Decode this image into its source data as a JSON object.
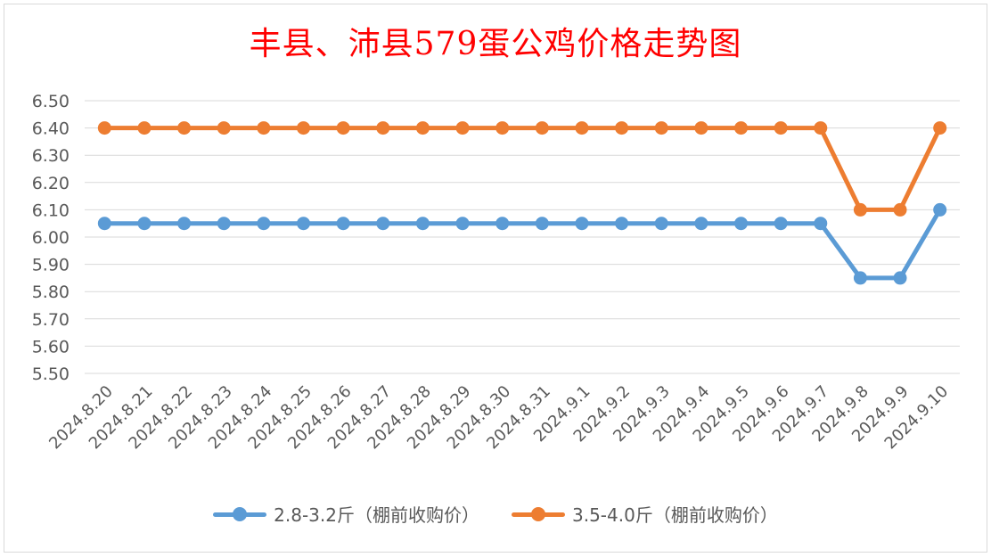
{
  "chart_data": {
    "type": "line",
    "title": "丰县、沛县579蛋公鸡价格走势图",
    "categories": [
      "2024.8.20",
      "2024.8.21",
      "2024.8.22",
      "2024.8.23",
      "2024.8.24",
      "2024.8.25",
      "2024.8.26",
      "2024.8.27",
      "2024.8.28",
      "2024.8.29",
      "2024.8.30",
      "2024.8.31",
      "2024.9.1",
      "2024.9.2",
      "2024.9.3",
      "2024.9.4",
      "2024.9.5",
      "2024.9.6",
      "2024.9.7",
      "2024.9.8",
      "2024.9.9",
      "2024.9.10"
    ],
    "series": [
      {
        "name": "2.8-3.2斤（棚前收购价）",
        "color": "#5b9bd5",
        "values": [
          6.05,
          6.05,
          6.05,
          6.05,
          6.05,
          6.05,
          6.05,
          6.05,
          6.05,
          6.05,
          6.05,
          6.05,
          6.05,
          6.05,
          6.05,
          6.05,
          6.05,
          6.05,
          6.05,
          5.85,
          5.85,
          6.1
        ]
      },
      {
        "name": "3.5-4.0斤（棚前收购价）",
        "color": "#ed7d31",
        "values": [
          6.4,
          6.4,
          6.4,
          6.4,
          6.4,
          6.4,
          6.4,
          6.4,
          6.4,
          6.4,
          6.4,
          6.4,
          6.4,
          6.4,
          6.4,
          6.4,
          6.4,
          6.4,
          6.4,
          6.1,
          6.1,
          6.4
        ]
      }
    ],
    "yticks": [
      "5.50",
      "5.60",
      "5.70",
      "5.80",
      "5.90",
      "6.00",
      "6.10",
      "6.20",
      "6.30",
      "6.40",
      "6.50"
    ],
    "ylim": [
      5.5,
      6.5
    ],
    "grid": true,
    "legend_position": "bottom"
  }
}
